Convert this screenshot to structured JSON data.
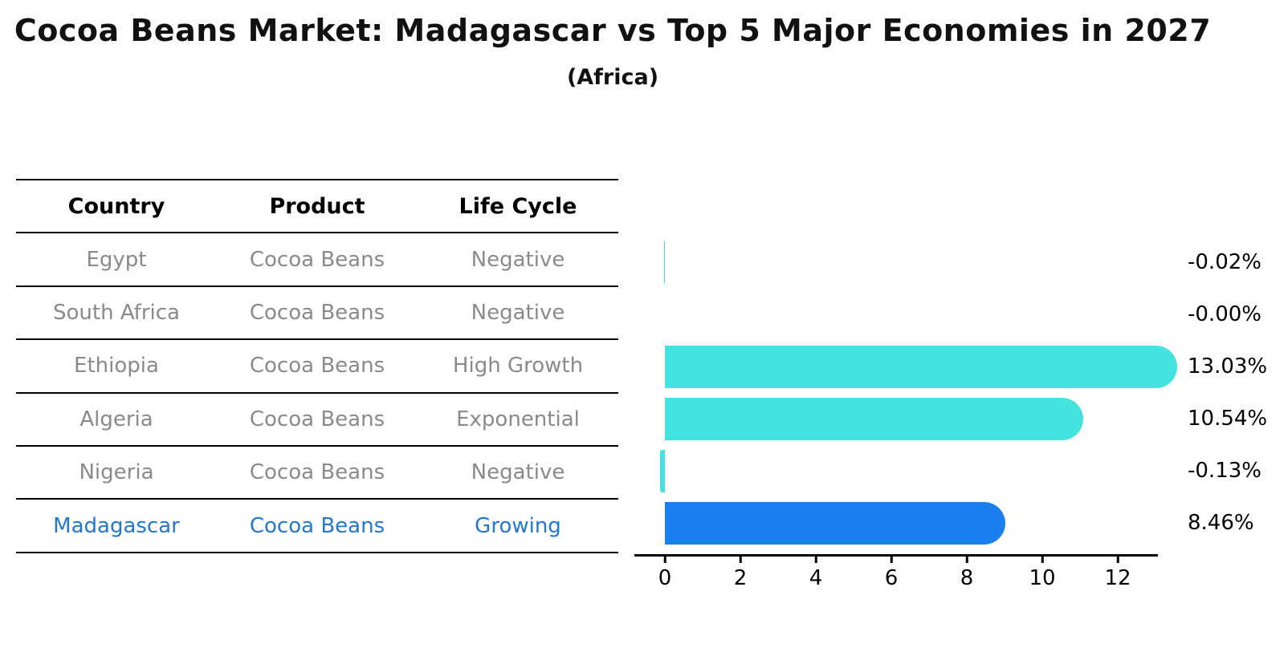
{
  "header": {
    "title": "Cocoa Beans Market: Madagascar vs Top 5 Major Economies in 2027",
    "subtitle": "(Africa)"
  },
  "table": {
    "columns": [
      "Country",
      "Product",
      "Life Cycle"
    ],
    "rows": [
      {
        "country": "Egypt",
        "product": "Cocoa Beans",
        "life_cycle": "Negative",
        "highlight": false
      },
      {
        "country": "South Africa",
        "product": "Cocoa Beans",
        "life_cycle": "Negative",
        "highlight": false
      },
      {
        "country": "Ethiopia",
        "product": "Cocoa Beans",
        "life_cycle": "High Growth",
        "highlight": false
      },
      {
        "country": "Algeria",
        "product": "Cocoa Beans",
        "life_cycle": "Exponential",
        "highlight": false
      },
      {
        "country": "Nigeria",
        "product": "Cocoa Beans",
        "life_cycle": "Negative",
        "highlight": false
      },
      {
        "country": "Madagascar",
        "product": "Cocoa Beans",
        "life_cycle": "Growing",
        "highlight": true
      }
    ]
  },
  "chart_data": {
    "type": "bar",
    "orientation": "horizontal",
    "title": "Cocoa Beans Market: Madagascar vs Top 5 Major Economies in 2027",
    "subtitle": "(Africa)",
    "categories": [
      "Egypt",
      "South Africa",
      "Ethiopia",
      "Algeria",
      "Nigeria",
      "Madagascar"
    ],
    "values": [
      -0.02,
      -0.0,
      13.03,
      10.54,
      -0.13,
      8.46
    ],
    "value_labels": [
      "-0.02%",
      "-0.00%",
      "13.03%",
      "10.54%",
      "-0.13%",
      "8.46%"
    ],
    "x_ticks": [
      0,
      2,
      4,
      6,
      8,
      10,
      12
    ],
    "xlim": [
      -0.8,
      13.05
    ],
    "grid": false,
    "legend": false,
    "bar_color": "#45e3e0",
    "highlight_color": "#1b7ff0",
    "highlight_index": 5,
    "highlight_text_color": "#2177d2"
  }
}
